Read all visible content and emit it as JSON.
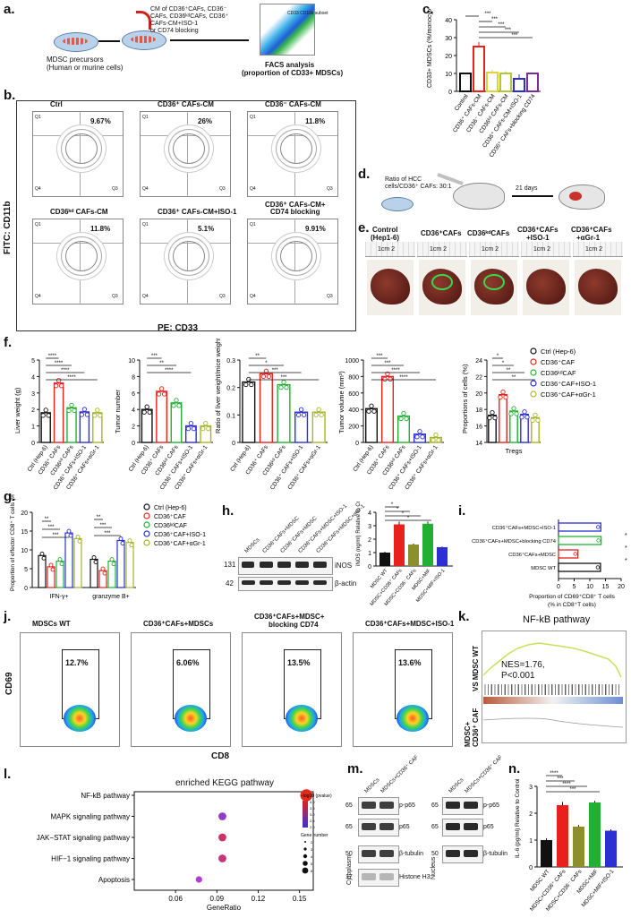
{
  "panel_letters": [
    "a.",
    "b.",
    "c.",
    "d.",
    "e.",
    "f.",
    "g.",
    "h.",
    "i.",
    "j.",
    "k.",
    "l.",
    "m.",
    "n."
  ],
  "a": {
    "label_1": "MDSC precursors",
    "label_2": "(Human or murine cells)",
    "treatment_1": "CM of CD36⁺CAFs, CD36⁻",
    "treatment_2": "CAFs, CD36ᵏᵈCAFs, CD36⁺",
    "treatment_3": "CAFs-CM+ISO-1",
    "treatment_4": "or CD74 blocking",
    "facs_1": "FACS analysis",
    "facs_2": "(proportion of CD33+ MDSCs)",
    "gate_text": "CD33 CD11b subset"
  },
  "b": {
    "y_axis": "FITC: CD11b",
    "x_axis": "PE: CD33",
    "plots": [
      {
        "title": "Ctrl",
        "pct": "9.67%"
      },
      {
        "title": "CD36⁺ CAFs-CM",
        "pct": "26%"
      },
      {
        "title": "CD36⁻ CAFs-CM",
        "pct": "11.8%"
      },
      {
        "title": "CD36ᵏᵈ CAFs-CM",
        "pct": "11.8%"
      },
      {
        "title": "CD36⁺ CAFs-CM+ISO-1",
        "pct": "5.1%"
      },
      {
        "title": "CD36⁺ CAFs-CM+",
        "title2": "CD74 blocking",
        "pct": "9.91%"
      }
    ],
    "quad_labels": [
      "Q1",
      "Q2",
      "Q3",
      "Q4"
    ]
  },
  "c": {
    "ylabel": "CD33+ MDSCs (%/monocytes)",
    "sig": [
      "***",
      "***",
      "***",
      "***",
      "***"
    ]
  },
  "d": {
    "ratio_1": "Ratio of HCC",
    "ratio_2": "cells/CD36⁺ CAFs: 30:1",
    "days": "21 days"
  },
  "e": {
    "groups": [
      "Control",
      "(Hep1-6)",
      "CD36⁺CAFs",
      "CD36ᵏᵈCAFs",
      "CD36⁺CAFs",
      "+ISO-1",
      "CD36⁺CAFs",
      "+αGr-1"
    ],
    "ruler": "1cm 2"
  },
  "f": {
    "groups": [
      "Ctrl (Hep-6)",
      "CD36⁺ CAFs",
      "CD36ᵏᵈ CAFs",
      "CD36⁺ CAFs+ISO-1",
      "CD36⁺ CAFs+αGr-1"
    ],
    "tregs": "Tregs",
    "legend": [
      "Ctrl (Hep-6)",
      "CD36⁺CAF",
      "CD36ᵏᵈCAF",
      "CD36⁺CAF+ISO-1",
      "CD36⁺CAF+αGr-1"
    ]
  },
  "g": {
    "ylabel": "Proportion of effector CD8⁺ T cells (%)",
    "groups": [
      "IFN-γ+",
      "granzyme B+"
    ],
    "legend": [
      "Ctrl (Hep-6)",
      "CD36⁺CAF",
      "CD36ᵏᵈCAF",
      "CD36⁺CAF+ISO-1",
      "CD36⁺CAF+αGr-1"
    ]
  },
  "h": {
    "lanes": [
      "MDSCs",
      "CD36⁺CAFs+MDSC",
      "CD36⁻CAFs+MDSC",
      "CD36⁺CAFs+MDSC+ISO-1",
      "CD36⁺CAFs+MDSC+αGr-1"
    ],
    "mw": [
      "131",
      "42"
    ],
    "bands": [
      "iNOS",
      "β-actin"
    ],
    "ylabel": "iNOS (ng/ml) Relative to Control",
    "xcats": [
      "MDSC WT",
      "MDSC+CD36⁺ CAFs",
      "MDSC+CD36⁻ CAFs",
      "MDSC+MIF",
      "MDSC+MIF+ISO-1"
    ]
  },
  "i": {
    "rows": [
      "CD36⁺CAFs+MDSC+ISO-1",
      "CD36⁺CAFs+MDSC+blocking CD74",
      "CD36⁺CAFs+MDSC",
      "MDSC WT"
    ],
    "xlabel_1": "Proportion of CD69⁺CD8⁺ T cells",
    "xlabel_2": "(% in CD8⁺T cells)"
  },
  "j": {
    "titles": [
      "MDSCs WT",
      "CD36⁺CAFs+MDSCs",
      "CD36⁺CAFs+MDSC+",
      "CD36⁺CAFs+MDSC+ISO-1"
    ],
    "title3b": "blocking CD74",
    "pcts": [
      "12.7%",
      "6.06%",
      "13.5%",
      "13.6%"
    ],
    "y": "CD69",
    "x": "CD8"
  },
  "k": {
    "title": "NF-kB pathway",
    "nes": "NES=1.76,",
    "p": "P<0.001",
    "side_1": "MDSC+",
    "side_2": "CD36⁺ CAF",
    "side_3": "VS MDSC WT"
  },
  "l": {
    "title": "enriched KEGG pathway",
    "xlabel": "GeneRatio",
    "pathways": [
      "NF-kB pathway",
      "MAPK signaling pathway",
      "JAK−STAT signaling pathway",
      "HIF−1 signaling pathway",
      "Apoptosis"
    ],
    "legend_title": "−log10 (pvalue)",
    "count_title": "Gene number"
  },
  "m": {
    "lanes": [
      "MDSCs",
      "MDSCs+CD36⁺ CAF"
    ],
    "fractions": [
      "Cytoplasm",
      "Nucleus"
    ],
    "left_mw": [
      "65",
      "65",
      "50",
      "17"
    ],
    "bands": [
      "p-p65",
      "p65",
      "β-tubulin",
      "Histone H3"
    ],
    "right_mw": [
      "65",
      "65",
      "50"
    ]
  },
  "n": {
    "ylabel": "IL-6 (pg/ml) Relative to Control",
    "xcats": [
      "MDSC WT",
      "MDSC+CD36⁺ CAFs",
      "MDSC+CD36⁻ CAFs",
      "MDSC+MIF",
      "MDSC+MIF+ISO-1"
    ]
  },
  "chart_data": [
    {
      "panel": "c",
      "type": "bar",
      "categories": [
        "Control",
        "CD36⁺ CAFs-CM",
        "CD36⁻ CAFs-CM",
        "CD36ᵏᵈ CAFs-CM",
        "CD36⁺ CAFs-CM+ISO-1",
        "CD36⁺ CAFs+blocking CD74"
      ],
      "values": [
        10,
        25,
        10.5,
        10,
        7,
        10
      ],
      "errors": [
        0.5,
        2.5,
        1.5,
        1.2,
        2.5,
        0.5
      ],
      "colors": [
        "#111111",
        "#e8211c",
        "#e0d33b",
        "#b7c43a",
        "#2b2fd4",
        "#7a2c9e"
      ],
      "ylim": [
        0,
        40
      ],
      "yticks": [
        0,
        10,
        20,
        30,
        40
      ],
      "ylabel": "CD33+ MDSCs (%/monocytes)"
    },
    {
      "panel": "f1",
      "type": "dotbar",
      "ylabel": "Liver weight (g)",
      "ylim": [
        0,
        5
      ],
      "yticks": [
        0,
        1,
        2,
        3,
        4,
        5
      ],
      "values": [
        1.8,
        3.6,
        2.1,
        1.85,
        1.8
      ],
      "sig": [
        "****",
        "****",
        "****",
        "****"
      ]
    },
    {
      "panel": "f2",
      "type": "dotbar",
      "ylabel": "Tumor number",
      "ylim": [
        0,
        10
      ],
      "yticks": [
        0,
        2,
        4,
        6,
        8,
        10
      ],
      "values": [
        4,
        6.2,
        4.8,
        2,
        2
      ],
      "sig": [
        "***",
        "**",
        "****"
      ]
    },
    {
      "panel": "f3",
      "type": "dotbar",
      "ylabel": "Ratio of liver weight/mice weight",
      "ylim": [
        0,
        0.3
      ],
      "yticks": [
        0,
        0.1,
        0.2,
        0.3
      ],
      "values": [
        0.22,
        0.25,
        0.21,
        0.11,
        0.11
      ],
      "sig": [
        "**",
        "*",
        "***",
        "***"
      ]
    },
    {
      "panel": "f4",
      "type": "dotbar",
      "ylabel": "Tumor volume (mm³)",
      "ylim": [
        0,
        1000
      ],
      "yticks": [
        0,
        200,
        400,
        600,
        800,
        1000
      ],
      "values": [
        410,
        800,
        320,
        100,
        60
      ],
      "sig": [
        "***",
        "***",
        "****",
        "****"
      ]
    },
    {
      "panel": "f5",
      "type": "dotbar",
      "ylabel": "Proportions of cells (%)",
      "ylim": [
        14,
        24
      ],
      "yticks": [
        14,
        16,
        18,
        20,
        22,
        24
      ],
      "xlabel": "Tregs",
      "values": [
        17.3,
        19.8,
        17.8,
        17.4,
        17.0
      ],
      "sig": [
        "*",
        "*",
        "**",
        "**"
      ]
    },
    {
      "panel": "g",
      "type": "grouped-dotbar",
      "ylabel": "Proportion of effector CD8⁺ T cells (%)",
      "categories": [
        "IFN-γ+",
        "granzyme B+"
      ],
      "ylim": [
        0,
        20
      ],
      "yticks": [
        0,
        5,
        10,
        15,
        20
      ],
      "series": [
        {
          "name": "Ctrl (Hep-6)",
          "values": [
            8.5,
            7.5
          ]
        },
        {
          "name": "CD36⁺CAF",
          "values": [
            5.5,
            4.5
          ]
        },
        {
          "name": "CD36ᵏᵈCAF",
          "values": [
            7,
            7
          ]
        },
        {
          "name": "CD36⁺CAF+ISO-1",
          "values": [
            14.5,
            12.5
          ]
        },
        {
          "name": "CD36⁺CAF+αGr-1",
          "values": [
            13,
            12
          ]
        }
      ],
      "sig": [
        "**",
        "***",
        "***",
        "**",
        "***",
        "***"
      ]
    },
    {
      "panel": "h",
      "type": "bar",
      "categories": [
        "MDSC WT",
        "MDSC+CD36⁺ CAFs",
        "MDSC+CD36⁻ CAFs",
        "MDSC+MIF",
        "MDSC+MIF+ISO-1"
      ],
      "values": [
        1.0,
        3.1,
        1.6,
        3.15,
        1.4
      ],
      "errors": [
        0.07,
        0.2,
        0.07,
        0.15,
        0.05
      ],
      "colors": [
        "#111111",
        "#e8211c",
        "#8b8f2c",
        "#22b033",
        "#2b2fd4"
      ],
      "ylim": [
        0,
        4
      ],
      "yticks": [
        0,
        1,
        2,
        3,
        4
      ],
      "ylabel": "iNOS (ng/ml) Relative to Control",
      "sig": [
        "*",
        "*",
        "*",
        "*"
      ]
    },
    {
      "panel": "i",
      "type": "hbar",
      "categories": [
        "CD36⁺CAFs+MDSC+ISO-1",
        "CD36⁺CAFs+MDSC+blocking CD74",
        "CD36⁺CAFs+MDSC",
        "MDSC WT"
      ],
      "values": [
        13.5,
        13.6,
        6.2,
        13.4
      ],
      "colors": [
        "#2b2fd4",
        "#22b033",
        "#e8211c",
        "#111111"
      ],
      "xlim": [
        0,
        20
      ],
      "xticks": [
        0,
        5,
        10,
        15,
        20
      ],
      "sig": [
        "*",
        "*",
        "*"
      ]
    },
    {
      "panel": "l",
      "type": "scatter",
      "xlabel": "GeneRatio",
      "xlim": [
        0.03,
        0.16
      ],
      "xticks": [
        0.06,
        0.09,
        0.12,
        0.15
      ],
      "categories": [
        "Apoptosis",
        "HIF−1 signaling pathway",
        "JAK−STAT signaling pathway",
        "MAPK signaling pathway",
        "NF-kB pathway"
      ],
      "x": [
        0.077,
        0.094,
        0.094,
        0.094,
        0.155
      ],
      "sizes": [
        2,
        3,
        3,
        3,
        6
      ],
      "colors": [
        "#b03bd6",
        "#c4357a",
        "#cc3264",
        "#8e3cc6",
        "#e02a1c"
      ],
      "legend_ticks": [
        "4.0",
        "3.5",
        "3.0",
        "2.5",
        "2.0"
      ],
      "count_ticks": [
        "2",
        "3",
        "4",
        "5",
        "6"
      ]
    },
    {
      "panel": "n",
      "type": "bar",
      "categories": [
        "MDSC WT",
        "MDSC+CD36⁺ CAFs",
        "MDSC+CD36⁻ CAFs",
        "MDSC+MIF",
        "MDSC+MIF+ISO-1"
      ],
      "values": [
        1.0,
        2.3,
        1.5,
        2.4,
        1.35
      ],
      "errors": [
        0.07,
        0.12,
        0.06,
        0.06,
        0.05
      ],
      "colors": [
        "#111111",
        "#e8211c",
        "#8b8f2c",
        "#22b033",
        "#2b2fd4"
      ],
      "ylim": [
        0,
        3
      ],
      "yticks": [
        0,
        1,
        2,
        3
      ],
      "ylabel": "IL-6 (pg/ml) Relative to Control",
      "sig": [
        "****",
        "***",
        "****",
        "***"
      ]
    }
  ],
  "colors": {
    "black": "#111111",
    "red": "#e8211c",
    "green": "#22b033",
    "blue": "#2b2fd4",
    "olive": "#a6b52a"
  }
}
